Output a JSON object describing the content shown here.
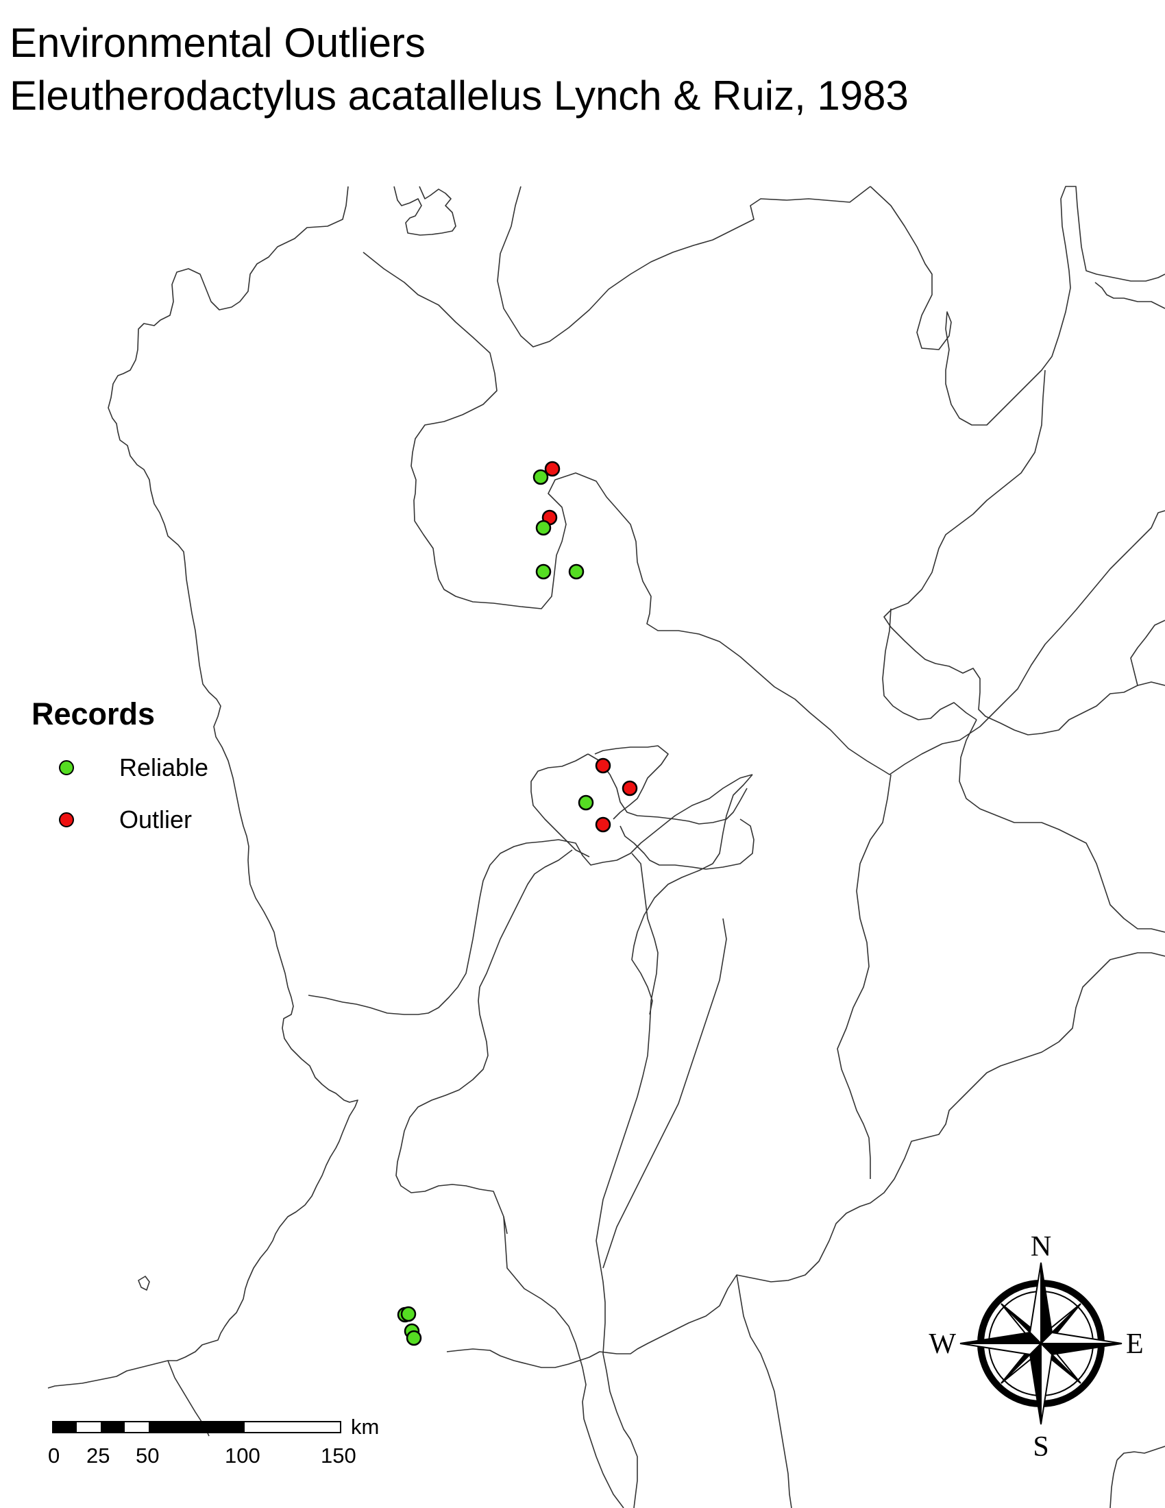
{
  "title": {
    "line1": "Environmental Outliers",
    "line2": "Eleutherodactylus acatallelus Lynch & Ruiz, 1983"
  },
  "legend": {
    "title": "Records",
    "items": [
      {
        "label": "Reliable",
        "color": "#55dd22"
      },
      {
        "label": "Outlier",
        "color": "#ee1111"
      }
    ]
  },
  "scale_bar": {
    "ticks": [
      "0",
      "25",
      "50",
      "100",
      "150"
    ],
    "unit": "km"
  },
  "compass": {
    "north": "N",
    "south": "S",
    "east": "E",
    "west": "W"
  },
  "colors": {
    "boundary": "#333333",
    "reliable": "#55dd22",
    "outlier": "#ee1111"
  }
}
